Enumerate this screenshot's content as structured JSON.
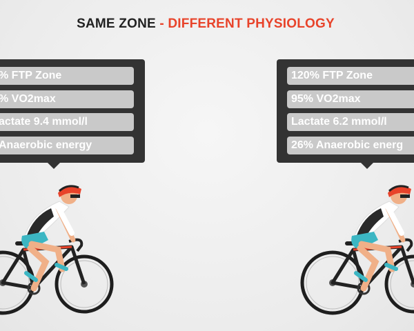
{
  "title": {
    "main": "SAME ZONE",
    "accent": "- DIFFERENT PHYSIOLOGY"
  },
  "left_panel": {
    "rows": [
      "% FTP Zone",
      "% VO2max",
      "actate 9.4 mmol/l",
      "Anaerobic energy"
    ]
  },
  "right_panel": {
    "rows": [
      "120% FTP Zone",
      "95% VO2max",
      "Lactate 6.2 mmol/l",
      "26% Anaerobic energ"
    ]
  }
}
